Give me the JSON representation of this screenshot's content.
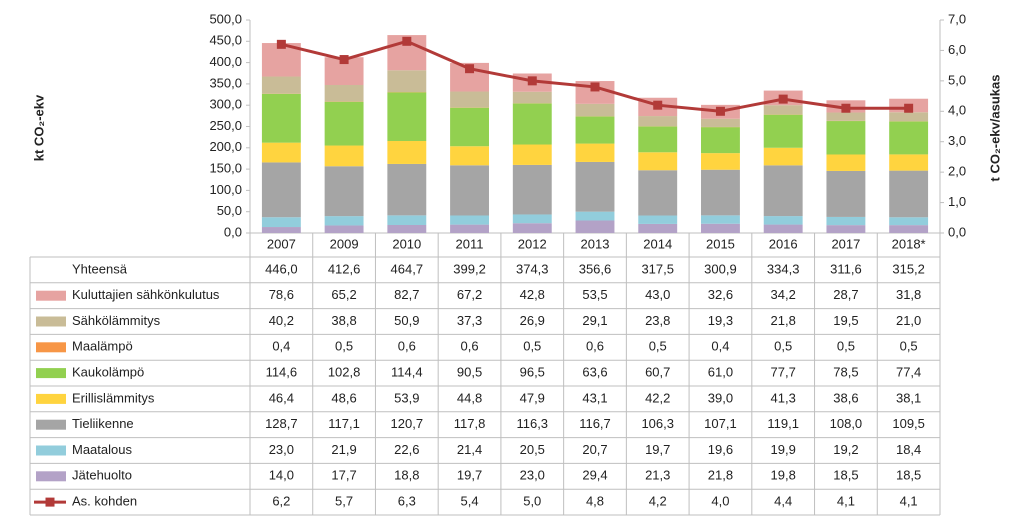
{
  "chart_data": {
    "type": "bar",
    "stacked": true,
    "y_label": "kt CO₂-ekv",
    "y2_label": "t CO₂-ekv/asukas",
    "categories": [
      "2007",
      "2009",
      "2010",
      "2011",
      "2012",
      "2013",
      "2014",
      "2015",
      "2016",
      "2017",
      "2018*"
    ],
    "ylim": [
      0,
      500
    ],
    "yticks": [
      {
        "value": 0,
        "label": "0,0"
      },
      {
        "value": 50,
        "label": "50,0"
      },
      {
        "value": 100,
        "label": "100,0"
      },
      {
        "value": 150,
        "label": "150,0"
      },
      {
        "value": 200,
        "label": "200,0"
      },
      {
        "value": 250,
        "label": "250,0"
      },
      {
        "value": 300,
        "label": "300,0"
      },
      {
        "value": 350,
        "label": "350,0"
      },
      {
        "value": 400,
        "label": "400,0"
      },
      {
        "value": 450,
        "label": "450,0"
      },
      {
        "value": 500,
        "label": "500,0"
      }
    ],
    "y2lim": [
      0,
      7
    ],
    "y2ticks": [
      {
        "value": 0,
        "label": "0,0"
      },
      {
        "value": 1,
        "label": "1,0"
      },
      {
        "value": 2,
        "label": "2,0"
      },
      {
        "value": 3,
        "label": "3,0"
      },
      {
        "value": 4,
        "label": "4,0"
      },
      {
        "value": 5,
        "label": "5,0"
      },
      {
        "value": 6,
        "label": "6,0"
      },
      {
        "value": 7,
        "label": "7,0"
      }
    ],
    "totals": {
      "name": "Yhteensä",
      "values": [
        446.0,
        412.6,
        464.7,
        399.2,
        374.3,
        356.6,
        317.5,
        300.9,
        334.3,
        311.6,
        315.2
      ],
      "value_labels": [
        "446,0",
        "412,6",
        "464,7",
        "399,2",
        "374,3",
        "356,6",
        "317,5",
        "300,9",
        "334,3",
        "311,6",
        "315,2"
      ]
    },
    "series": [
      {
        "name": "Kuluttajien sähkönkulutus",
        "color": "#e6a3a1",
        "values": [
          78.6,
          65.2,
          82.7,
          67.2,
          42.8,
          53.5,
          43.0,
          32.6,
          34.2,
          28.7,
          31.8
        ],
        "value_labels": [
          "78,6",
          "65,2",
          "82,7",
          "67,2",
          "42,8",
          "53,5",
          "43,0",
          "32,6",
          "34,2",
          "28,7",
          "31,8"
        ]
      },
      {
        "name": "Sähkölämmitys",
        "color": "#c9bc97",
        "values": [
          40.2,
          38.8,
          50.9,
          37.3,
          26.9,
          29.1,
          23.8,
          19.3,
          21.8,
          19.5,
          21.0
        ],
        "value_labels": [
          "40,2",
          "38,8",
          "50,9",
          "37,3",
          "26,9",
          "29,1",
          "23,8",
          "19,3",
          "21,8",
          "19,5",
          "21,0"
        ]
      },
      {
        "name": "Maalämpö",
        "color": "#f79646",
        "values": [
          0.4,
          0.5,
          0.6,
          0.6,
          0.5,
          0.6,
          0.5,
          0.4,
          0.5,
          0.5,
          0.5
        ],
        "value_labels": [
          "0,4",
          "0,5",
          "0,6",
          "0,6",
          "0,5",
          "0,6",
          "0,5",
          "0,4",
          "0,5",
          "0,5",
          "0,5"
        ]
      },
      {
        "name": "Kaukolämpö",
        "color": "#92d050",
        "values": [
          114.6,
          102.8,
          114.4,
          90.5,
          96.5,
          63.6,
          60.7,
          61.0,
          77.7,
          78.5,
          77.4
        ],
        "value_labels": [
          "114,6",
          "102,8",
          "114,4",
          "90,5",
          "96,5",
          "63,6",
          "60,7",
          "61,0",
          "77,7",
          "78,5",
          "77,4"
        ]
      },
      {
        "name": "Erillislämmitys",
        "color": "#ffd43f",
        "values": [
          46.4,
          48.6,
          53.9,
          44.8,
          47.9,
          43.1,
          42.2,
          39.0,
          41.3,
          38.6,
          38.1
        ],
        "value_labels": [
          "46,4",
          "48,6",
          "53,9",
          "44,8",
          "47,9",
          "43,1",
          "42,2",
          "39,0",
          "41,3",
          "38,6",
          "38,1"
        ]
      },
      {
        "name": "Tieliikenne",
        "color": "#a5a5a5",
        "values": [
          128.7,
          117.1,
          120.7,
          117.8,
          116.3,
          116.7,
          106.3,
          107.1,
          119.1,
          108.0,
          109.5
        ],
        "value_labels": [
          "128,7",
          "117,1",
          "120,7",
          "117,8",
          "116,3",
          "116,7",
          "106,3",
          "107,1",
          "119,1",
          "108,0",
          "109,5"
        ]
      },
      {
        "name": "Maatalous",
        "color": "#92cddc",
        "values": [
          23.0,
          21.9,
          22.6,
          21.4,
          20.5,
          20.7,
          19.7,
          19.6,
          19.9,
          19.2,
          18.4
        ],
        "value_labels": [
          "23,0",
          "21,9",
          "22,6",
          "21,4",
          "20,5",
          "20,7",
          "19,7",
          "19,6",
          "19,9",
          "19,2",
          "18,4"
        ]
      },
      {
        "name": "Jätehuolto",
        "color": "#b3a2c7",
        "values": [
          14.0,
          17.7,
          18.8,
          19.7,
          23.0,
          29.4,
          21.3,
          21.8,
          19.8,
          18.5,
          18.5
        ],
        "value_labels": [
          "14,0",
          "17,7",
          "18,8",
          "19,7",
          "23,0",
          "29,4",
          "21,3",
          "21,8",
          "19,8",
          "18,5",
          "18,5"
        ]
      },
      {
        "name": "As. kohden",
        "type": "line",
        "axis": "y2",
        "color": "#b23a38",
        "values": [
          6.2,
          5.7,
          6.3,
          5.4,
          5.0,
          4.8,
          4.2,
          4.0,
          4.4,
          4.1,
          4.1
        ],
        "value_labels": [
          "6,2",
          "5,7",
          "6,3",
          "5,4",
          "5,0",
          "4,8",
          "4,2",
          "4,0",
          "4,4",
          "4,1",
          "4,1"
        ]
      }
    ]
  }
}
